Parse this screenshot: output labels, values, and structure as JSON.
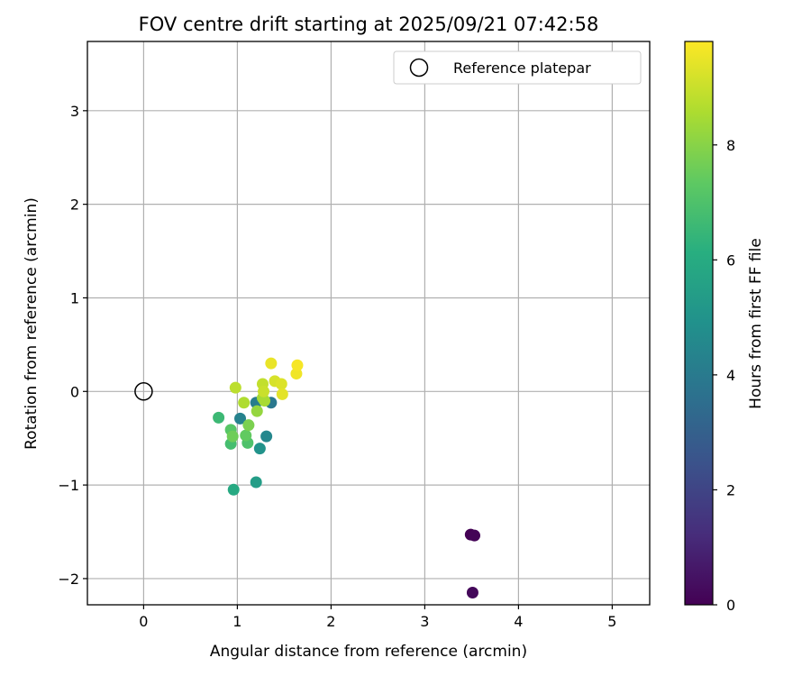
{
  "chart_data": {
    "type": "scatter",
    "title": "FOV centre drift starting at 2025/09/21 07:42:58",
    "xlabel": "Angular distance from reference (arcmin)",
    "ylabel": "Rotation from reference (arcmin)",
    "xlim": [
      -0.6,
      5.4
    ],
    "ylim": [
      -2.28,
      3.74
    ],
    "xticks": [
      0,
      1,
      2,
      3,
      4,
      5
    ],
    "xtick_labels": [
      "0",
      "1",
      "2",
      "3",
      "4",
      "5"
    ],
    "yticks": [
      -2,
      -1,
      0,
      1,
      2,
      3
    ],
    "ytick_labels": [
      "−2",
      "−1",
      "0",
      "1",
      "2",
      "3"
    ],
    "grid": true,
    "legend": {
      "position": "top-right",
      "label": "Reference platepar"
    },
    "reference_point": {
      "x": 0,
      "y": 0
    },
    "colorbar": {
      "label": "Hours from first FF file",
      "range": [
        0,
        9.8
      ],
      "colormap": "viridis",
      "ticks": [
        0,
        2,
        4,
        6,
        8
      ],
      "tick_labels": [
        "0",
        "2",
        "4",
        "6",
        "8"
      ]
    },
    "points": [
      {
        "x": 3.49,
        "y": -1.53,
        "hours": 0.0
      },
      {
        "x": 3.53,
        "y": -1.54,
        "hours": 0.1
      },
      {
        "x": 3.51,
        "y": -2.15,
        "hours": 0.2
      },
      {
        "x": 1.36,
        "y": -0.12,
        "hours": 3.9
      },
      {
        "x": 1.2,
        "y": -0.12,
        "hours": 4.1
      },
      {
        "x": 1.03,
        "y": -0.29,
        "hours": 4.3
      },
      {
        "x": 1.31,
        "y": -0.48,
        "hours": 4.5
      },
      {
        "x": 1.24,
        "y": -0.61,
        "hours": 5.0
      },
      {
        "x": 1.2,
        "y": -0.97,
        "hours": 5.4
      },
      {
        "x": 0.96,
        "y": -1.05,
        "hours": 5.9
      },
      {
        "x": 0.8,
        "y": -0.28,
        "hours": 6.6
      },
      {
        "x": 0.93,
        "y": -0.56,
        "hours": 6.8
      },
      {
        "x": 1.11,
        "y": -0.55,
        "hours": 7.0
      },
      {
        "x": 0.93,
        "y": -0.41,
        "hours": 7.2
      },
      {
        "x": 1.09,
        "y": -0.47,
        "hours": 7.4
      },
      {
        "x": 0.95,
        "y": -0.48,
        "hours": 7.6
      },
      {
        "x": 1.12,
        "y": -0.36,
        "hours": 7.8
      },
      {
        "x": 1.21,
        "y": -0.21,
        "hours": 8.2
      },
      {
        "x": 1.27,
        "y": -0.07,
        "hours": 8.4
      },
      {
        "x": 1.29,
        "y": -0.1,
        "hours": 8.5
      },
      {
        "x": 1.07,
        "y": -0.12,
        "hours": 8.6
      },
      {
        "x": 0.98,
        "y": 0.04,
        "hours": 8.8
      },
      {
        "x": 1.27,
        "y": 0.08,
        "hours": 8.9
      },
      {
        "x": 1.28,
        "y": 0.0,
        "hours": 9.0
      },
      {
        "x": 1.4,
        "y": 0.11,
        "hours": 9.2
      },
      {
        "x": 1.47,
        "y": 0.08,
        "hours": 9.3
      },
      {
        "x": 1.48,
        "y": -0.03,
        "hours": 9.4
      },
      {
        "x": 1.36,
        "y": 0.3,
        "hours": 9.5
      },
      {
        "x": 1.63,
        "y": 0.19,
        "hours": 9.6
      },
      {
        "x": 1.64,
        "y": 0.28,
        "hours": 9.7
      }
    ]
  }
}
